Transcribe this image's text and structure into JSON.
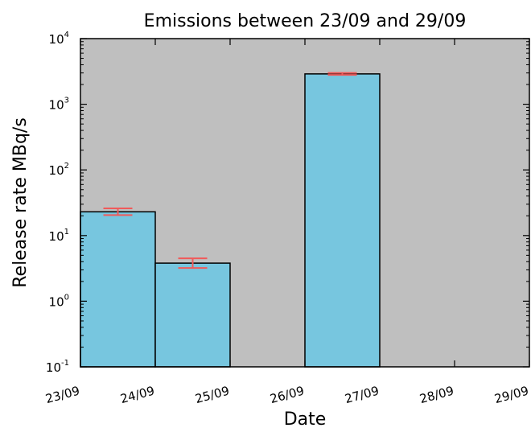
{
  "chart_data": {
    "type": "bar",
    "title": "Emissions between 23/09 and 29/09",
    "xlabel": "Date",
    "ylabel": "Release rate MBq/s",
    "y_scale": "log",
    "ylim": [
      0.1,
      10000
    ],
    "y_ticks": [
      {
        "base": "10",
        "exp": "-1",
        "value": 0.1
      },
      {
        "base": "10",
        "exp": "0",
        "value": 1
      },
      {
        "base": "10",
        "exp": "1",
        "value": 10
      },
      {
        "base": "10",
        "exp": "2",
        "value": 100
      },
      {
        "base": "10",
        "exp": "3",
        "value": 1000
      },
      {
        "base": "10",
        "exp": "4",
        "value": 10000
      }
    ],
    "x_ticks": [
      "23/09",
      "24/09",
      "25/09",
      "26/09",
      "27/09",
      "28/09",
      "29/09"
    ],
    "bars": [
      {
        "start": "23/09",
        "end": "24/09",
        "value": 23,
        "err_low": 20.5,
        "err_high": 26
      },
      {
        "start": "24/09",
        "end": "25/09",
        "value": 3.8,
        "err_low": 3.2,
        "err_high": 4.5
      },
      {
        "start": "25/09",
        "end": "26/09",
        "value": null,
        "err_low": null,
        "err_high": null
      },
      {
        "start": "26/09",
        "end": "27/09",
        "value": 2900,
        "err_low": 2800,
        "err_high": 3000
      },
      {
        "start": "27/09",
        "end": "28/09",
        "value": null,
        "err_low": null,
        "err_high": null
      },
      {
        "start": "28/09",
        "end": "29/09",
        "value": null,
        "err_low": null,
        "err_high": null
      }
    ],
    "grid": false,
    "legend": "none",
    "colors": {
      "plot_background": "#bfbfbf",
      "bar_fill": "#77c6df",
      "bar_edge": "#000000",
      "error_bar": "#f05a5a"
    }
  }
}
